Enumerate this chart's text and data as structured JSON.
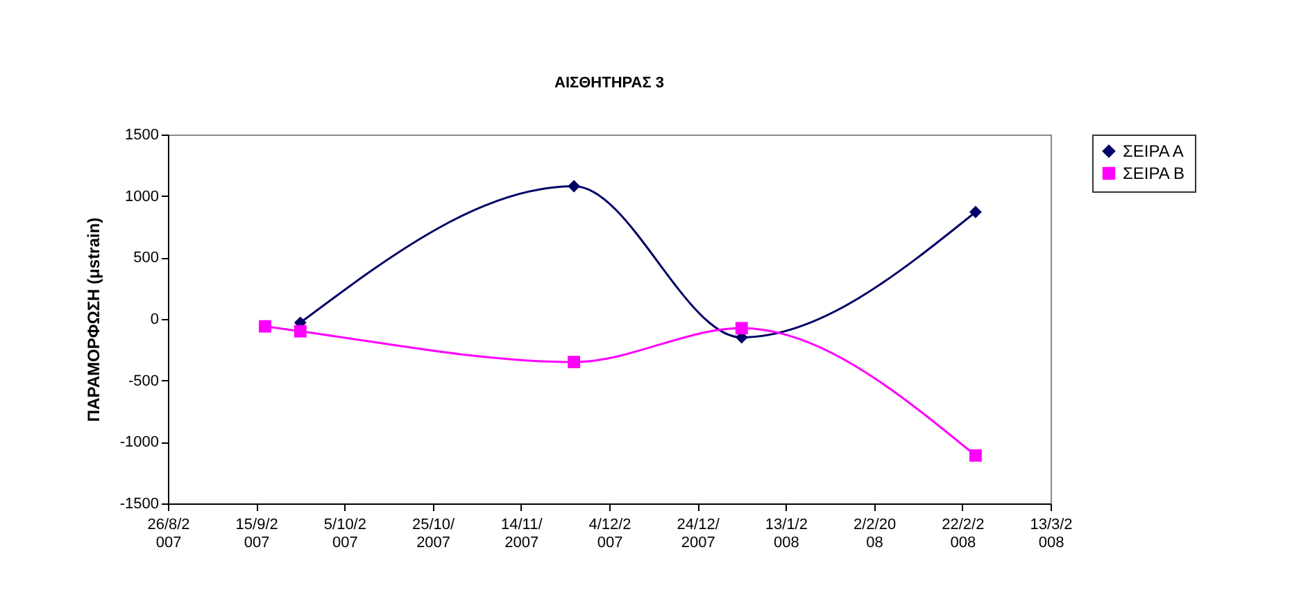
{
  "chart_data": {
    "type": "line",
    "title": "ΑΙΣΘΗΤΗΡΑΣ 3",
    "ylabel": "ΠΑΡΑΜΟΡΦΩΣΗ  (μstrain)",
    "xlim": [
      "2007-08-26",
      "2008-03-13"
    ],
    "xticks": [
      {
        "value": "2007-08-26",
        "label": "26/8/2007"
      },
      {
        "value": "2007-09-15",
        "label": "15/9/2007"
      },
      {
        "value": "2007-10-05",
        "label": "5/10/2007"
      },
      {
        "value": "2007-10-25",
        "label": "25/10/2007"
      },
      {
        "value": "2007-11-14",
        "label": "14/11/2007"
      },
      {
        "value": "2007-12-04",
        "label": "4/12/2007"
      },
      {
        "value": "2007-12-24",
        "label": "24/12/2007"
      },
      {
        "value": "2008-01-13",
        "label": "13/1/2008"
      },
      {
        "value": "2008-02-02",
        "label": "2/2/2008"
      },
      {
        "value": "2008-02-22",
        "label": "22/2/2008"
      },
      {
        "value": "2008-03-13",
        "label": "13/3/2008"
      }
    ],
    "ylim": [
      -1500,
      1500
    ],
    "yticks": [
      -1500,
      -1000,
      -500,
      0,
      500,
      1000,
      1500
    ],
    "legend": "right",
    "line_style": "solid",
    "series": [
      {
        "name": "ΣΕΙΡΑ Α",
        "color": "#000066",
        "marker": "diamond",
        "x": [
          "2007-09-25",
          "2007-11-26",
          "2008-01-03",
          "2008-02-25"
        ],
        "values": [
          -30,
          1080,
          -150,
          870
        ]
      },
      {
        "name": "ΣΕΙΡΑ Β",
        "color": "#ff00ff",
        "marker": "square",
        "x": [
          "2007-09-17",
          "2007-09-25",
          "2007-11-26",
          "2008-01-03",
          "2008-02-25"
        ],
        "values": [
          -60,
          -100,
          -350,
          -75,
          -1110
        ]
      }
    ]
  }
}
